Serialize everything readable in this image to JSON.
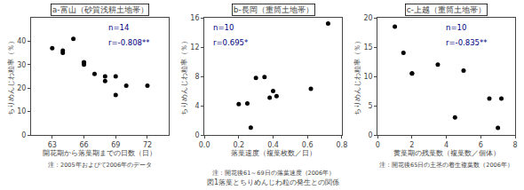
{
  "title": "図1落葉とちりめんじわ粒の発生との関係",
  "chart_data": [
    {
      "type": "scatter",
      "title": "a-富山（砂質浅耕土地帯）",
      "xlabel": "開花期から落葉期までの日数（日）",
      "ylabel": "ちりめんじわ粒率（％）",
      "annotations": [
        "n=14",
        "r=-0.808**"
      ],
      "annotation_color": "#000080",
      "note": "注：2005年およびて2006年のデータ",
      "x": [
        63,
        64,
        64,
        65,
        66,
        66,
        66,
        67,
        68,
        68,
        69,
        69,
        70,
        72
      ],
      "values": [
        37,
        36,
        35,
        41,
        31,
        31,
        30,
        26,
        25,
        23,
        25,
        17,
        21,
        21
      ],
      "color": "#000000",
      "xlim": [
        61,
        74
      ],
      "xticks": [
        63,
        66,
        69,
        72
      ],
      "ylim": [
        0,
        50
      ],
      "yticks": [
        0,
        10,
        20,
        30,
        40
      ],
      "grid": false
    },
    {
      "type": "scatter",
      "title": "b-長岡（重筒土地帯）",
      "xlabel": "落葉速度（複葉枚数／日）",
      "ylabel": "ちりめんじわ粒率（％）",
      "annotations": [
        "n=10",
        "r=0.695*"
      ],
      "annotation_color": "#000080",
      "note": "注：開花後61～69日の落葉速度（2006年）",
      "x": [
        0.2,
        0.25,
        0.27,
        0.3,
        0.35,
        0.38,
        0.4,
        0.42,
        0.62,
        0.72
      ],
      "values": [
        4.2,
        4.3,
        1.0,
        7.8,
        7.9,
        5.1,
        6.0,
        5.3,
        6.3,
        15.2
      ],
      "color": "#000000",
      "xlim": [
        0,
        0.8
      ],
      "xticks": [
        {
          "value": 0,
          "label": "0.0"
        },
        0.2,
        0.4,
        0.6,
        0.8
      ],
      "ylim": [
        0,
        16
      ],
      "yticks": [
        0,
        4,
        8,
        12,
        16
      ],
      "grid": false
    },
    {
      "type": "scatter",
      "title": "c-上越（重筒土地帯）",
      "xlabel": "黄葉期の残葉数（複葉数／個体）",
      "ylabel": "ちりめんじわ粒率（％）",
      "annotations": [
        "n=10",
        "r=-0.835**"
      ],
      "annotation_color": "#000080",
      "note": "注：開花後65日の主茎の着生複葉数（2006年）",
      "x": [
        1.0,
        1.5,
        2.0,
        2.0,
        3.5,
        4.5,
        5.0,
        6.5,
        7.0,
        7.2
      ],
      "values": [
        18.5,
        14.0,
        10.5,
        10.5,
        12.0,
        3.0,
        11.0,
        6.2,
        1.2,
        6.2
      ],
      "color": "#000000",
      "xlim": [
        0,
        8
      ],
      "xticks": [
        0,
        2,
        4,
        6,
        8
      ],
      "ylim": [
        0,
        20
      ],
      "yticks": [
        0,
        5,
        10,
        15,
        20
      ],
      "grid": false
    }
  ]
}
